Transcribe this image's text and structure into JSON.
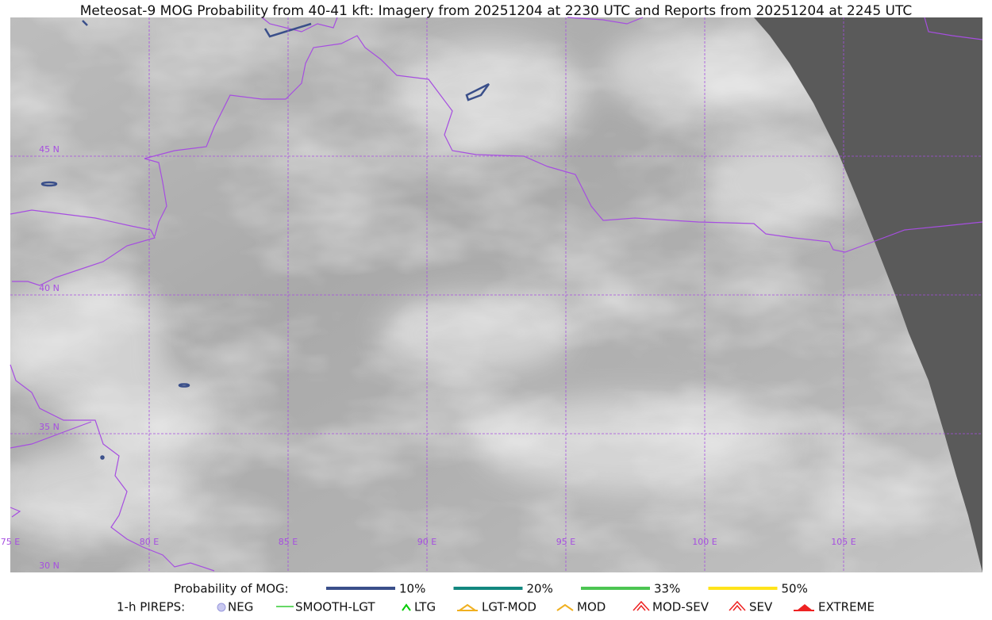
{
  "title": "Meteosat-9 MOG Probability from 40-41 kft: Imagery from 20251204 at 2230 UTC and Reports from 20251204 at 2245 UTC",
  "map": {
    "lon_labels": [
      "75 E",
      "80 E",
      "85 E",
      "90 E",
      "95 E",
      "100 E",
      "105 E"
    ],
    "lat_labels": [
      "45 N",
      "40 N",
      "35 N",
      "30 N"
    ]
  },
  "legend": {
    "probability_title": "Probability of MOG:",
    "probability_items": [
      {
        "label": "10%",
        "color": "#3a4f8a"
      },
      {
        "label": "20%",
        "color": "#13877f"
      },
      {
        "label": "33%",
        "color": "#4cc552"
      },
      {
        "label": "50%",
        "color": "#ffe31a"
      }
    ],
    "pireps_title": "1-h PIREPS:",
    "pireps_items": [
      "NEG",
      "SMOOTH-LGT",
      "LTG",
      "LGT-MOD",
      "MOD",
      "MOD-SEV",
      "SEV",
      "EXTREME"
    ]
  }
}
